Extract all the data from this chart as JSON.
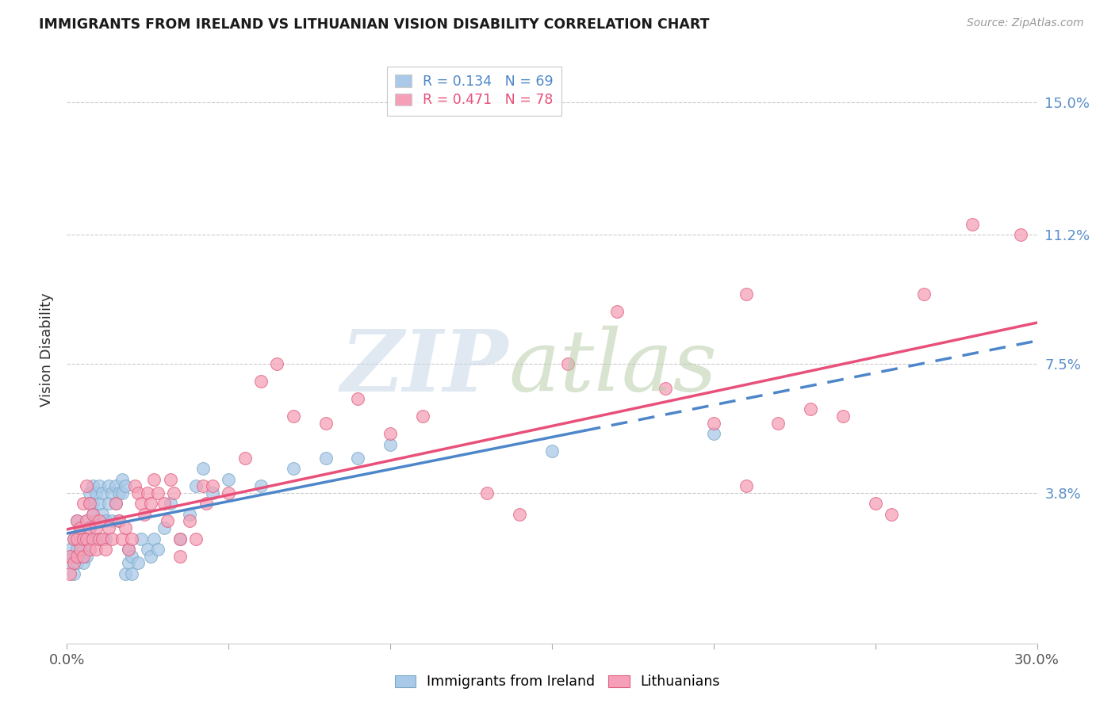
{
  "title": "IMMIGRANTS FROM IRELAND VS LITHUANIAN VISION DISABILITY CORRELATION CHART",
  "source": "Source: ZipAtlas.com",
  "ylabel": "Vision Disability",
  "ytick_labels": [
    "15.0%",
    "11.2%",
    "7.5%",
    "3.8%"
  ],
  "ytick_values": [
    0.15,
    0.112,
    0.075,
    0.038
  ],
  "xmin": 0.0,
  "xmax": 0.3,
  "ymin": -0.005,
  "ymax": 0.163,
  "ireland_color": "#aac9e8",
  "ireland_edge": "#7aaac8",
  "lithuanian_color": "#f5a0b8",
  "lithuanian_edge": "#e06080",
  "ireland_line_color": "#4d86c9",
  "lithuanian_line_color": "#e8507a",
  "ireland_points": [
    [
      0.001,
      0.018
    ],
    [
      0.001,
      0.022
    ],
    [
      0.002,
      0.02
    ],
    [
      0.002,
      0.025
    ],
    [
      0.002,
      0.015
    ],
    [
      0.003,
      0.022
    ],
    [
      0.003,
      0.018
    ],
    [
      0.003,
      0.03
    ],
    [
      0.004,
      0.025
    ],
    [
      0.004,
      0.02
    ],
    [
      0.004,
      0.028
    ],
    [
      0.005,
      0.022
    ],
    [
      0.005,
      0.018
    ],
    [
      0.005,
      0.025
    ],
    [
      0.006,
      0.03
    ],
    [
      0.006,
      0.025
    ],
    [
      0.006,
      0.02
    ],
    [
      0.007,
      0.038
    ],
    [
      0.007,
      0.035
    ],
    [
      0.007,
      0.028
    ],
    [
      0.008,
      0.04
    ],
    [
      0.008,
      0.035
    ],
    [
      0.008,
      0.032
    ],
    [
      0.009,
      0.038
    ],
    [
      0.009,
      0.03
    ],
    [
      0.009,
      0.025
    ],
    [
      0.01,
      0.04
    ],
    [
      0.01,
      0.035
    ],
    [
      0.011,
      0.038
    ],
    [
      0.011,
      0.032
    ],
    [
      0.012,
      0.03
    ],
    [
      0.012,
      0.025
    ],
    [
      0.013,
      0.04
    ],
    [
      0.013,
      0.035
    ],
    [
      0.014,
      0.038
    ],
    [
      0.014,
      0.03
    ],
    [
      0.015,
      0.04
    ],
    [
      0.015,
      0.035
    ],
    [
      0.016,
      0.038
    ],
    [
      0.016,
      0.03
    ],
    [
      0.017,
      0.042
    ],
    [
      0.017,
      0.038
    ],
    [
      0.018,
      0.04
    ],
    [
      0.018,
      0.015
    ],
    [
      0.019,
      0.022
    ],
    [
      0.019,
      0.018
    ],
    [
      0.02,
      0.02
    ],
    [
      0.02,
      0.015
    ],
    [
      0.022,
      0.018
    ],
    [
      0.023,
      0.025
    ],
    [
      0.025,
      0.022
    ],
    [
      0.026,
      0.02
    ],
    [
      0.027,
      0.025
    ],
    [
      0.028,
      0.022
    ],
    [
      0.03,
      0.028
    ],
    [
      0.032,
      0.035
    ],
    [
      0.035,
      0.025
    ],
    [
      0.038,
      0.032
    ],
    [
      0.04,
      0.04
    ],
    [
      0.042,
      0.045
    ],
    [
      0.045,
      0.038
    ],
    [
      0.05,
      0.042
    ],
    [
      0.06,
      0.04
    ],
    [
      0.07,
      0.045
    ],
    [
      0.08,
      0.048
    ],
    [
      0.09,
      0.048
    ],
    [
      0.1,
      0.052
    ],
    [
      0.15,
      0.05
    ],
    [
      0.2,
      0.055
    ]
  ],
  "lithuanian_points": [
    [
      0.001,
      0.015
    ],
    [
      0.001,
      0.02
    ],
    [
      0.002,
      0.018
    ],
    [
      0.002,
      0.025
    ],
    [
      0.003,
      0.02
    ],
    [
      0.003,
      0.025
    ],
    [
      0.003,
      0.03
    ],
    [
      0.004,
      0.022
    ],
    [
      0.004,
      0.028
    ],
    [
      0.005,
      0.025
    ],
    [
      0.005,
      0.02
    ],
    [
      0.005,
      0.035
    ],
    [
      0.006,
      0.03
    ],
    [
      0.006,
      0.025
    ],
    [
      0.006,
      0.04
    ],
    [
      0.007,
      0.028
    ],
    [
      0.007,
      0.022
    ],
    [
      0.007,
      0.035
    ],
    [
      0.008,
      0.032
    ],
    [
      0.008,
      0.025
    ],
    [
      0.009,
      0.028
    ],
    [
      0.009,
      0.022
    ],
    [
      0.01,
      0.03
    ],
    [
      0.01,
      0.025
    ],
    [
      0.011,
      0.025
    ],
    [
      0.012,
      0.022
    ],
    [
      0.013,
      0.028
    ],
    [
      0.014,
      0.025
    ],
    [
      0.015,
      0.035
    ],
    [
      0.016,
      0.03
    ],
    [
      0.017,
      0.025
    ],
    [
      0.018,
      0.028
    ],
    [
      0.019,
      0.022
    ],
    [
      0.02,
      0.025
    ],
    [
      0.021,
      0.04
    ],
    [
      0.022,
      0.038
    ],
    [
      0.023,
      0.035
    ],
    [
      0.024,
      0.032
    ],
    [
      0.025,
      0.038
    ],
    [
      0.026,
      0.035
    ],
    [
      0.027,
      0.042
    ],
    [
      0.028,
      0.038
    ],
    [
      0.03,
      0.035
    ],
    [
      0.031,
      0.03
    ],
    [
      0.032,
      0.042
    ],
    [
      0.033,
      0.038
    ],
    [
      0.035,
      0.025
    ],
    [
      0.035,
      0.02
    ],
    [
      0.038,
      0.03
    ],
    [
      0.04,
      0.025
    ],
    [
      0.042,
      0.04
    ],
    [
      0.043,
      0.035
    ],
    [
      0.045,
      0.04
    ],
    [
      0.05,
      0.038
    ],
    [
      0.055,
      0.048
    ],
    [
      0.06,
      0.07
    ],
    [
      0.065,
      0.075
    ],
    [
      0.07,
      0.06
    ],
    [
      0.08,
      0.058
    ],
    [
      0.09,
      0.065
    ],
    [
      0.1,
      0.055
    ],
    [
      0.11,
      0.06
    ],
    [
      0.13,
      0.038
    ],
    [
      0.14,
      0.032
    ],
    [
      0.155,
      0.075
    ],
    [
      0.17,
      0.09
    ],
    [
      0.185,
      0.068
    ],
    [
      0.2,
      0.058
    ],
    [
      0.21,
      0.04
    ],
    [
      0.22,
      0.058
    ],
    [
      0.23,
      0.062
    ],
    [
      0.24,
      0.06
    ],
    [
      0.25,
      0.035
    ],
    [
      0.255,
      0.032
    ],
    [
      0.265,
      0.095
    ],
    [
      0.28,
      0.115
    ],
    [
      0.295,
      0.112
    ],
    [
      0.21,
      0.095
    ]
  ]
}
